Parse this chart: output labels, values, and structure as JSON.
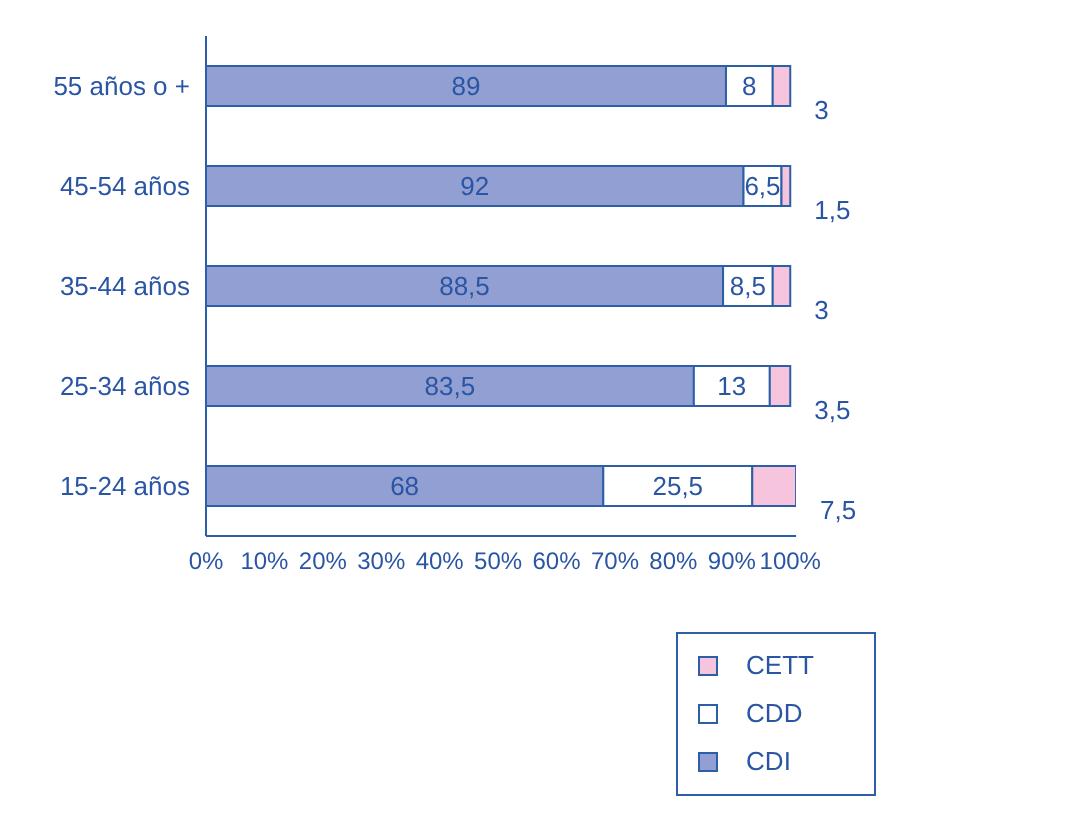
{
  "chart_data": {
    "type": "bar",
    "orientation": "horizontal",
    "stacked": true,
    "categories": [
      "55 años o +",
      "45-54 años",
      "35-44 años",
      "25-34 años",
      "15-24 años"
    ],
    "series": [
      {
        "name": "CDI",
        "color": "#919fd2",
        "values": [
          89,
          92,
          88.5,
          83.5,
          68
        ],
        "value_labels": [
          "89",
          "92",
          "88,5",
          "83,5",
          "68"
        ]
      },
      {
        "name": "CDD",
        "color": "#ffffff",
        "values": [
          8,
          6.5,
          8.5,
          13,
          25.5
        ],
        "value_labels": [
          "8",
          "6,5",
          "8,5",
          "13",
          "25,5"
        ]
      },
      {
        "name": "CETT",
        "color": "#f6c4dc",
        "values": [
          3,
          1.5,
          3,
          3.5,
          7.5
        ],
        "value_labels": [
          "3",
          "1,5",
          "3",
          "3,5",
          "7,5"
        ]
      }
    ],
    "xlim": [
      0,
      101
    ],
    "xticks": [
      {
        "value": 0,
        "label": "0%"
      },
      {
        "value": 10,
        "label": "10%"
      },
      {
        "value": 20,
        "label": "20%"
      },
      {
        "value": 30,
        "label": "30%"
      },
      {
        "value": 40,
        "label": "40%"
      },
      {
        "value": 50,
        "label": "50%"
      },
      {
        "value": 60,
        "label": "60%"
      },
      {
        "value": 70,
        "label": "70%"
      },
      {
        "value": 80,
        "label": "80%"
      },
      {
        "value": 90,
        "label": "90%"
      },
      {
        "value": 100,
        "label": "100%"
      }
    ],
    "grid": false,
    "legend": "bottom right"
  }
}
